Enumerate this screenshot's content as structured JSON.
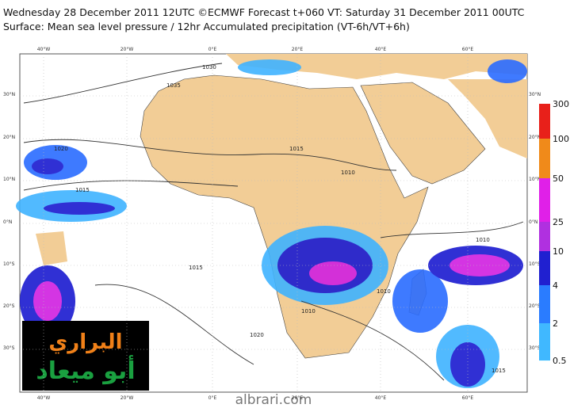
{
  "header": {
    "line1": "Wednesday 28 December 2011 12UTC ©ECMWF Forecast t+060 VT: Saturday 31 December 2011 00UTC",
    "line2": "Surface: Mean sea level pressure / 12hr Accumulated precipitation (VT-6h/VT+6h)"
  },
  "longitudes": [
    "40°W",
    "20°W",
    "0°E",
    "20°E",
    "40°E",
    "60°E"
  ],
  "latitudes": [
    "30°N",
    "20°N",
    "10°N",
    "0°N",
    "10°S",
    "20°S",
    "30°S"
  ],
  "colorbar": {
    "labels": [
      "300",
      "100",
      "50",
      "25",
      "10",
      "4",
      "2",
      "0.5"
    ]
  },
  "isobar_labels": [
    "1020",
    "1015",
    "1035",
    "1030",
    "1015",
    "1010",
    "1015",
    "1010",
    "1010",
    "1020",
    "1010",
    "1015"
  ],
  "watermark": {
    "line1": "البراري",
    "line2": "أبو ميعاد"
  },
  "footer": "albrari.com"
}
